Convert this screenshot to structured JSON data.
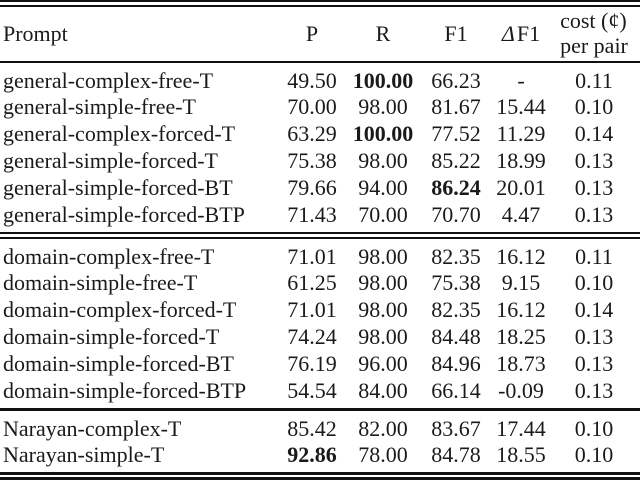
{
  "header": {
    "prompt": "Prompt",
    "precision": "P",
    "recall": "R",
    "f1": "F1",
    "delta_symbol": "Δ",
    "delta_f1_label": "F1",
    "cost_line1": "cost (¢)",
    "cost_line2": "per pair"
  },
  "groups": [
    {
      "name": "general",
      "rows": [
        {
          "prompt": "general-complex-free-T",
          "p": "49.50",
          "r": "100.00",
          "f1": "66.23",
          "delta_f1": "-",
          "cost": "0.11"
        },
        {
          "prompt": "general-simple-free-T",
          "p": "70.00",
          "r": "98.00",
          "f1": "81.67",
          "delta_f1": "15.44",
          "cost": "0.10"
        },
        {
          "prompt": "general-complex-forced-T",
          "p": "63.29",
          "r": "100.00",
          "f1": "77.52",
          "delta_f1": "11.29",
          "cost": "0.14"
        },
        {
          "prompt": "general-simple-forced-T",
          "p": "75.38",
          "r": "98.00",
          "f1": "85.22",
          "delta_f1": "18.99",
          "cost": "0.13"
        },
        {
          "prompt": "general-simple-forced-BT",
          "p": "79.66",
          "r": "94.00",
          "f1": "86.24",
          "delta_f1": "20.01",
          "cost": "0.13"
        },
        {
          "prompt": "general-simple-forced-BTP",
          "p": "71.43",
          "r": "70.00",
          "f1": "70.70",
          "delta_f1": "4.47",
          "cost": "0.13"
        }
      ]
    },
    {
      "name": "domain",
      "rows": [
        {
          "prompt": "domain-complex-free-T",
          "p": "71.01",
          "r": "98.00",
          "f1": "82.35",
          "delta_f1": "16.12",
          "cost": "0.11"
        },
        {
          "prompt": "domain-simple-free-T",
          "p": "61.25",
          "r": "98.00",
          "f1": "75.38",
          "delta_f1": "9.15",
          "cost": "0.10"
        },
        {
          "prompt": "domain-complex-forced-T",
          "p": "71.01",
          "r": "98.00",
          "f1": "82.35",
          "delta_f1": "16.12",
          "cost": "0.14"
        },
        {
          "prompt": "domain-simple-forced-T",
          "p": "74.24",
          "r": "98.00",
          "f1": "84.48",
          "delta_f1": "18.25",
          "cost": "0.13"
        },
        {
          "prompt": "domain-simple-forced-BT",
          "p": "76.19",
          "r": "96.00",
          "f1": "84.96",
          "delta_f1": "18.73",
          "cost": "0.13"
        },
        {
          "prompt": "domain-simple-forced-BTP",
          "p": "54.54",
          "r": "84.00",
          "f1": "66.14",
          "delta_f1": "-0.09",
          "cost": "0.13"
        }
      ]
    },
    {
      "name": "Narayan",
      "rows": [
        {
          "prompt": "Narayan-complex-T",
          "p": "85.42",
          "r": "82.00",
          "f1": "83.67",
          "delta_f1": "17.44",
          "cost": "0.10"
        },
        {
          "prompt": "Narayan-simple-T",
          "p": "92.86",
          "r": "78.00",
          "f1": "84.78",
          "delta_f1": "18.55",
          "cost": "0.10"
        }
      ]
    }
  ]
}
